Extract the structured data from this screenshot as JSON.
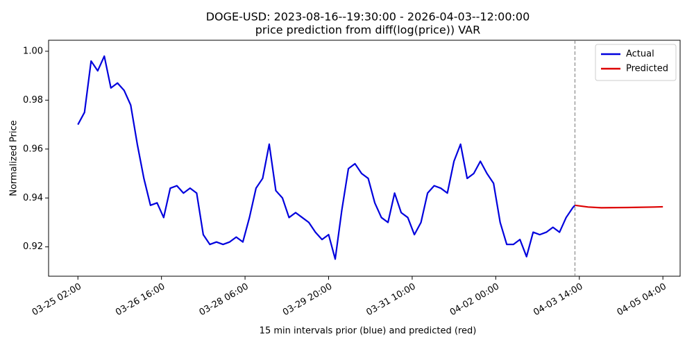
{
  "chart_data": {
    "type": "line",
    "title": "DOGE-USD: 2023-08-16--19:30:00 - 2026-04-03--12:00:00",
    "subtitle": "price prediction from diff(log(price)) VAR",
    "xlabel": "15 min intervals prior (blue) and predicted (red)",
    "ylabel": "Normalized Price",
    "xlim": [
      "03-24 12:40",
      "04-05 11:50"
    ],
    "xticks": [
      "03-25 02:00",
      "03-26 16:00",
      "03-28 06:00",
      "03-29 20:00",
      "03-31 10:00",
      "04-02 00:00",
      "04-03 14:00",
      "04-05 04:00"
    ],
    "ylim": [
      0.908,
      1.0045
    ],
    "yticks": [
      0.92,
      0.94,
      0.96,
      0.98,
      {
        "value": 1,
        "label": "1.00"
      }
    ],
    "legend": "upper right",
    "series": [
      {
        "name": "Actual",
        "color": "#0000dd",
        "x": [
          "03-25 02:00",
          "03-25 05:00",
          "03-25 08:00",
          "03-25 11:00",
          "03-25 14:00",
          "03-25 17:00",
          "03-25 20:00",
          "03-25 23:00",
          "03-26 02:00",
          "03-26 05:00",
          "03-26 08:00",
          "03-26 11:00",
          "03-26 14:00",
          "03-26 17:00",
          "03-26 20:00",
          "03-26 23:00",
          "03-27 02:00",
          "03-27 05:00",
          "03-27 08:00",
          "03-27 11:00",
          "03-27 14:00",
          "03-27 17:00",
          "03-27 20:00",
          "03-27 23:00",
          "03-28 02:00",
          "03-28 05:00",
          "03-28 08:00",
          "03-28 11:00",
          "03-28 14:00",
          "03-28 17:00",
          "03-28 20:00",
          "03-28 23:00",
          "03-29 02:00",
          "03-29 05:00",
          "03-29 08:00",
          "03-29 11:00",
          "03-29 14:00",
          "03-29 17:00",
          "03-29 20:00",
          "03-29 23:00",
          "03-30 02:00",
          "03-30 05:00",
          "03-30 08:00",
          "03-30 11:00",
          "03-30 14:00",
          "03-30 17:00",
          "03-30 20:00",
          "03-30 23:00",
          "03-31 02:00",
          "03-31 05:00",
          "03-31 08:00",
          "03-31 11:00",
          "03-31 14:00",
          "03-31 17:00",
          "03-31 20:00",
          "03-31 23:00",
          "04-01 02:00",
          "04-01 05:00",
          "04-01 08:00",
          "04-01 11:00",
          "04-01 14:00",
          "04-01 17:00",
          "04-01 20:00",
          "04-01 23:00",
          "04-02 02:00",
          "04-02 05:00",
          "04-02 08:00",
          "04-02 11:00",
          "04-02 14:00",
          "04-02 17:00",
          "04-02 20:00",
          "04-02 23:00",
          "04-03 02:00",
          "04-03 05:00",
          "04-03 08:00",
          "04-03 11:00",
          "04-03 12:00"
        ],
        "values": [
          0.97,
          0.975,
          0.996,
          0.992,
          0.998,
          0.985,
          0.987,
          0.984,
          0.978,
          0.962,
          0.948,
          0.937,
          0.938,
          0.932,
          0.944,
          0.945,
          0.942,
          0.944,
          0.942,
          0.925,
          0.921,
          0.922,
          0.921,
          0.922,
          0.924,
          0.922,
          0.932,
          0.944,
          0.948,
          0.962,
          0.943,
          0.94,
          0.932,
          0.934,
          0.932,
          0.93,
          0.926,
          0.923,
          0.925,
          0.915,
          0.935,
          0.952,
          0.954,
          0.95,
          0.948,
          0.938,
          0.932,
          0.93,
          0.942,
          0.934,
          0.932,
          0.925,
          0.93,
          0.942,
          0.945,
          0.944,
          0.942,
          0.955,
          0.962,
          0.948,
          0.95,
          0.955,
          0.95,
          0.946,
          0.93,
          0.921,
          0.921,
          0.923,
          0.916,
          0.926,
          0.925,
          0.926,
          0.928,
          0.926,
          0.932,
          0.936,
          0.937
        ]
      },
      {
        "name": "Predicted",
        "color": "#dd0000",
        "x": [
          "04-03 12:00",
          "04-03 18:00",
          "04-04 00:00",
          "04-04 12:00",
          "04-05 00:00",
          "04-05 04:00"
        ],
        "values": [
          0.937,
          0.9363,
          0.936,
          0.9361,
          0.9363,
          0.9364
        ]
      }
    ]
  }
}
